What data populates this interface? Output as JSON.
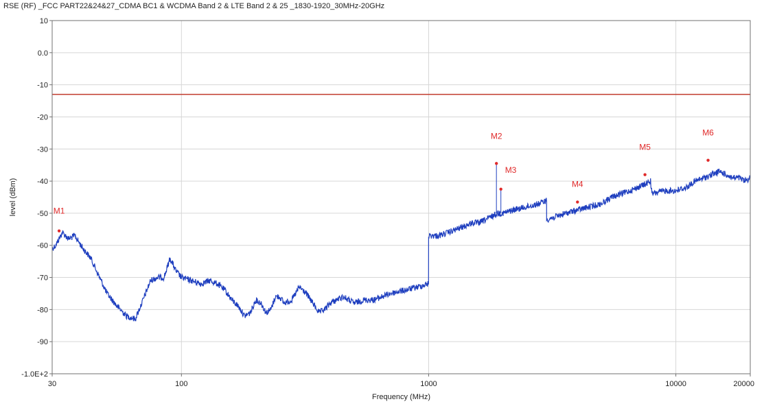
{
  "chart_data": {
    "type": "line",
    "title": "RSE (RF) _FCC PART22&24&27_CDMA BC1 & WCDMA Band 2 & LTE Band 2 & 25 _1830-1920_30MHz-20GHz",
    "xlabel": "Frequency (MHz)",
    "ylabel": "level (dBm)",
    "x_scale": "log",
    "xlim": [
      30,
      20000
    ],
    "ylim": [
      -100,
      10
    ],
    "x_ticks": [
      30,
      100,
      1000,
      10000,
      20000
    ],
    "x_tick_labels": [
      "30",
      "100",
      "1000",
      "10000",
      "20000"
    ],
    "y_ticks": [
      10,
      0,
      -10,
      -20,
      -30,
      -40,
      -50,
      -60,
      -70,
      -80,
      -90,
      -100
    ],
    "y_tick_labels": [
      "10",
      "0.0",
      "-10",
      "-20",
      "-30",
      "-40",
      "-50",
      "-60",
      "-70",
      "-80",
      "-90",
      "-1.0E+2"
    ],
    "grid": true,
    "limit_line": {
      "y": -13,
      "color": "#c0392b"
    },
    "series": [
      {
        "color": "#1f3fbf",
        "x": [
          30,
          31,
          33,
          35,
          37,
          40,
          43,
          46,
          50,
          55,
          60,
          65,
          70,
          75,
          80,
          85,
          90,
          95,
          100,
          110,
          120,
          130,
          140,
          150,
          160,
          170,
          180,
          190,
          200,
          210,
          220,
          230,
          240,
          250,
          260,
          280,
          300,
          320,
          340,
          360,
          380,
          400,
          450,
          500,
          550,
          600,
          700,
          800,
          900,
          999,
          1000,
          1100,
          1200,
          1300,
          1400,
          1500,
          1600,
          1700,
          1800,
          1900,
          2000,
          2200,
          2500,
          2800,
          3000,
          3001,
          3300,
          3600,
          4000,
          4500,
          5000,
          5500,
          6000,
          6500,
          7000,
          7500,
          7900,
          8000,
          9000,
          10000,
          11000,
          12000,
          13000,
          14000,
          15000,
          16000,
          17000,
          18000,
          19000,
          20000
        ],
        "y": [
          -61,
          -60,
          -56,
          -58,
          -57,
          -61,
          -64,
          -69,
          -75,
          -79,
          -82,
          -83,
          -77,
          -71,
          -70,
          -70,
          -64,
          -68,
          -70,
          -71,
          -72,
          -71,
          -72,
          -74,
          -77,
          -79,
          -82,
          -81,
          -77,
          -78,
          -81,
          -80,
          -76,
          -76,
          -78,
          -77,
          -73,
          -75,
          -78,
          -81,
          -80,
          -78,
          -76,
          -78,
          -77,
          -77,
          -75,
          -74,
          -73,
          -72,
          -57,
          -57,
          -56,
          -55,
          -54,
          -53,
          -53,
          -52,
          -51,
          -50,
          -50,
          -49,
          -48,
          -47,
          -46,
          -52,
          -51,
          -50,
          -49,
          -48,
          -47,
          -45,
          -44,
          -43,
          -42,
          -41,
          -40,
          -44,
          -43,
          -43,
          -42,
          -40,
          -39,
          -38,
          -37,
          -38,
          -39,
          -39,
          -40,
          -39
        ]
      }
    ],
    "markers": [
      {
        "label": "M1",
        "x": 32,
        "y": -55.5
      },
      {
        "label": "M2",
        "x": 1880,
        "y": -34.5
      },
      {
        "label": "M3",
        "x": 1960,
        "y": -42.5
      },
      {
        "label": "M4",
        "x": 4000,
        "y": -46.5
      },
      {
        "label": "M5",
        "x": 7500,
        "y": -38
      },
      {
        "label": "M6",
        "x": 13500,
        "y": -33.5
      }
    ],
    "marker_color": "#e02a2a"
  }
}
